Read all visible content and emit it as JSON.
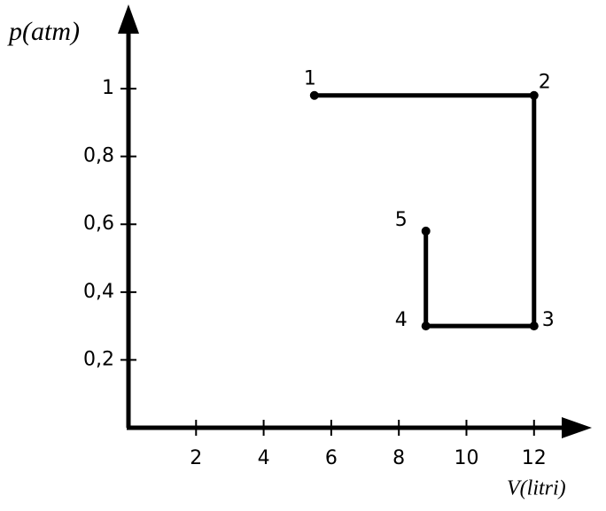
{
  "chart_data": {
    "type": "line",
    "x_label": "V(litri)",
    "y_label": "p(atm)",
    "x": [
      5.5,
      12,
      12,
      8.8,
      8.8
    ],
    "series": [
      {
        "color": "#000000",
        "values": [
          0.98,
          0.98,
          0.3,
          0.3,
          0.58
        ]
      }
    ],
    "point_labels": [
      "1",
      "2",
      "3",
      "4",
      "5"
    ],
    "xlim": [
      0,
      13.5
    ],
    "ylim": [
      0,
      1.23
    ],
    "xticks": [
      2,
      4,
      6,
      8,
      10,
      12
    ],
    "yticks": [
      {
        "value": 0.2,
        "label": "0,2"
      },
      {
        "value": 0.4,
        "label": "0,4"
      },
      {
        "value": 0.6,
        "label": "0,6"
      },
      {
        "value": 0.8,
        "label": "0,8"
      },
      1
    ],
    "grid": false
  }
}
